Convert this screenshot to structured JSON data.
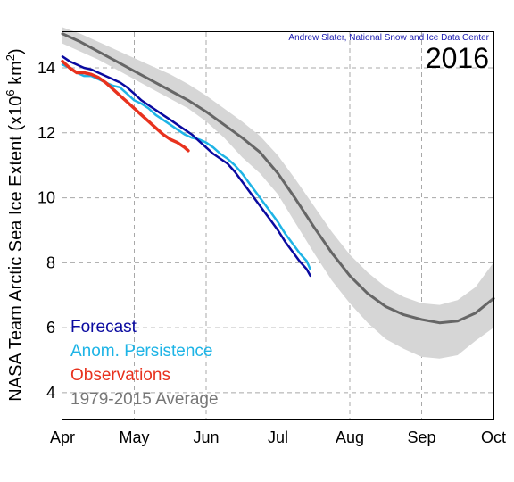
{
  "chart_data": {
    "type": "line",
    "title": "2016",
    "credit": "Andrew Slater, National Snow and Ice Data Center",
    "ylabel": "NASA Team Arctic Sea Ice Extent (x10",
    "ylabel_sup": "6",
    "ylabel_unit": " km",
    "ylabel_sup2": "2",
    "ylabel_close": ")",
    "xlabel": "",
    "xlim_months": [
      4.0,
      10.0
    ],
    "ylim": [
      3.2,
      15.1
    ],
    "x_ticks": [
      {
        "x": 4,
        "label": "Apr"
      },
      {
        "x": 5,
        "label": "May"
      },
      {
        "x": 6,
        "label": "Jun"
      },
      {
        "x": 7,
        "label": "Jul"
      },
      {
        "x": 8,
        "label": "Aug"
      },
      {
        "x": 9,
        "label": "Sep"
      },
      {
        "x": 10,
        "label": "Oct"
      }
    ],
    "y_ticks": [
      {
        "y": 4,
        "label": "4"
      },
      {
        "y": 6,
        "label": "6"
      },
      {
        "y": 8,
        "label": "8"
      },
      {
        "y": 10,
        "label": "10"
      },
      {
        "y": 12,
        "label": "12"
      },
      {
        "y": 14,
        "label": "14"
      }
    ],
    "grid": true,
    "legend_position": "bottom-left",
    "band": {
      "name": "1979-2015 range",
      "color": "#d6d6d6",
      "x": [
        4.0,
        4.25,
        4.5,
        4.75,
        5.0,
        5.25,
        5.5,
        5.75,
        6.0,
        6.25,
        6.5,
        6.75,
        7.0,
        7.25,
        7.5,
        7.75,
        8.0,
        8.25,
        8.5,
        8.75,
        9.0,
        9.25,
        9.5,
        9.75,
        10.0
      ],
      "upper": [
        15.25,
        15.05,
        14.8,
        14.55,
        14.3,
        14.05,
        13.8,
        13.5,
        13.15,
        12.75,
        12.35,
        11.9,
        11.3,
        10.55,
        9.75,
        8.95,
        8.25,
        7.7,
        7.25,
        6.95,
        6.75,
        6.7,
        6.85,
        7.25,
        8.0
      ],
      "lower": [
        14.75,
        14.5,
        14.25,
        13.95,
        13.65,
        13.35,
        13.05,
        12.75,
        12.35,
        11.85,
        11.25,
        10.75,
        10.1,
        9.2,
        8.3,
        7.45,
        6.75,
        6.15,
        5.65,
        5.35,
        5.1,
        5.05,
        5.15,
        5.6,
        6.0
      ]
    },
    "series": [
      {
        "name": "Forecast",
        "color": "#0a0aa0",
        "width": 2.5,
        "x": [
          4.0,
          4.1,
          4.2,
          4.3,
          4.4,
          4.5,
          4.6,
          4.7,
          4.8,
          4.9,
          5.0,
          5.1,
          5.2,
          5.3,
          5.4,
          5.5,
          5.6,
          5.7,
          5.8,
          5.9,
          6.0,
          6.1,
          6.2,
          6.3,
          6.4,
          6.5,
          6.6,
          6.7,
          6.8,
          6.9,
          7.0,
          7.1,
          7.2,
          7.3,
          7.4,
          7.45
        ],
        "values": [
          14.35,
          14.2,
          14.1,
          14.0,
          13.95,
          13.85,
          13.75,
          13.65,
          13.55,
          13.4,
          13.2,
          13.0,
          12.85,
          12.7,
          12.55,
          12.4,
          12.25,
          12.1,
          11.95,
          11.75,
          11.55,
          11.35,
          11.2,
          11.05,
          10.8,
          10.5,
          10.2,
          9.9,
          9.6,
          9.3,
          9.0,
          8.65,
          8.35,
          8.05,
          7.8,
          7.6
        ]
      },
      {
        "name": "Anom. Persistence",
        "color": "#1eb4e6",
        "width": 2.5,
        "x": [
          4.0,
          4.1,
          4.2,
          4.3,
          4.4,
          4.5,
          4.6,
          4.7,
          4.8,
          4.9,
          5.0,
          5.1,
          5.2,
          5.3,
          5.4,
          5.5,
          5.6,
          5.7,
          5.8,
          5.9,
          6.0,
          6.1,
          6.2,
          6.3,
          6.4,
          6.5,
          6.6,
          6.7,
          6.8,
          6.9,
          7.0,
          7.1,
          7.2,
          7.3,
          7.4,
          7.45
        ],
        "values": [
          14.1,
          14.0,
          13.85,
          13.75,
          13.75,
          13.65,
          13.55,
          13.45,
          13.4,
          13.2,
          13.0,
          12.9,
          12.75,
          12.55,
          12.4,
          12.25,
          12.1,
          11.95,
          11.85,
          11.8,
          11.7,
          11.55,
          11.35,
          11.2,
          11.0,
          10.75,
          10.45,
          10.15,
          9.85,
          9.55,
          9.25,
          8.9,
          8.6,
          8.3,
          8.05,
          7.8
        ]
      },
      {
        "name": "Observations",
        "color": "#e8321e",
        "width": 3.5,
        "x": [
          4.0,
          4.1,
          4.2,
          4.3,
          4.4,
          4.5,
          4.6,
          4.7,
          4.8,
          4.9,
          5.0,
          5.1,
          5.2,
          5.3,
          5.4,
          5.5,
          5.6,
          5.7,
          5.75
        ],
        "values": [
          14.2,
          14.0,
          13.85,
          13.85,
          13.8,
          13.7,
          13.55,
          13.35,
          13.15,
          12.95,
          12.75,
          12.55,
          12.35,
          12.15,
          11.95,
          11.8,
          11.7,
          11.55,
          11.45
        ]
      },
      {
        "name": "1979-2015 Average",
        "color": "#666666",
        "width": 3,
        "x": [
          4.0,
          4.25,
          4.5,
          4.75,
          5.0,
          5.25,
          5.5,
          5.75,
          6.0,
          6.25,
          6.5,
          6.75,
          7.0,
          7.25,
          7.5,
          7.75,
          8.0,
          8.25,
          8.5,
          8.75,
          9.0,
          9.25,
          9.5,
          9.75,
          10.0
        ],
        "values": [
          15.05,
          14.8,
          14.5,
          14.2,
          13.9,
          13.6,
          13.3,
          13.0,
          12.65,
          12.25,
          11.85,
          11.4,
          10.75,
          9.95,
          9.1,
          8.3,
          7.6,
          7.05,
          6.65,
          6.4,
          6.25,
          6.15,
          6.2,
          6.45,
          6.9
        ]
      }
    ],
    "legend": [
      {
        "label": "Forecast",
        "color": "#0a0aa0"
      },
      {
        "label": "Anom. Persistence",
        "color": "#1eb4e6"
      },
      {
        "label": "Observations",
        "color": "#e8321e"
      },
      {
        "label": "1979-2015 Average",
        "color": "#777777"
      }
    ]
  }
}
